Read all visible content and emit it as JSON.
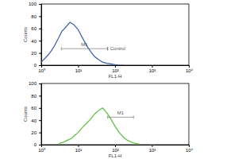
{
  "chart_data": [
    {
      "type": "line",
      "x_label": "FL1-H",
      "y_label": "Counts",
      "log": "x",
      "x": [
        1,
        1.3,
        1.7,
        2.2,
        2.8,
        3.6,
        4.6,
        6,
        7.7,
        10,
        13,
        17,
        22,
        28,
        36,
        46,
        60,
        77,
        100,
        130,
        170
      ],
      "values": [
        5,
        12,
        20,
        30,
        42,
        55,
        62,
        70,
        66,
        58,
        45,
        32,
        22,
        14,
        9,
        5,
        3,
        2,
        1,
        0,
        0
      ],
      "color": "#3a5fa8",
      "xlim": [
        1,
        10000
      ],
      "xticks": [
        {
          "value": 1,
          "label": "10⁰"
        },
        {
          "value": 10,
          "label": "10¹"
        },
        {
          "value": 100,
          "label": "10²"
        },
        {
          "value": 1000,
          "label": "10³"
        },
        {
          "value": 10000,
          "label": "10⁴"
        }
      ],
      "ylim": [
        0,
        100
      ],
      "yticks": [
        0,
        20,
        40,
        60,
        80,
        100
      ],
      "annotations": [
        {
          "text": "M1",
          "x": [
            3.5,
            63
          ],
          "y": 27
        },
        {
          "text": "Control",
          "x": [
            63,
            63
          ],
          "y": 27
        }
      ]
    },
    {
      "type": "line",
      "x_label": "FL1-H",
      "y_label": "Counts",
      "log": "x",
      "x": [
        3,
        4,
        5,
        6.5,
        8,
        10,
        13,
        17,
        22,
        28,
        36,
        46,
        60,
        77,
        100,
        130,
        170,
        220,
        280,
        360,
        460
      ],
      "values": [
        2,
        4,
        7,
        10,
        15,
        20,
        28,
        35,
        42,
        50,
        56,
        60,
        52,
        42,
        30,
        20,
        12,
        7,
        4,
        2,
        1
      ],
      "color": "#5cbf3a",
      "xlim": [
        1,
        10000
      ],
      "xticks": [
        {
          "value": 1,
          "label": "10⁰"
        },
        {
          "value": 10,
          "label": "10¹"
        },
        {
          "value": 100,
          "label": "10²"
        },
        {
          "value": 1000,
          "label": "10³"
        },
        {
          "value": 10000,
          "label": "10⁴"
        }
      ],
      "ylim": [
        0,
        100
      ],
      "yticks": [
        0,
        20,
        40,
        60,
        80,
        100
      ],
      "annotations": [
        {
          "text": "M1",
          "x": [
            63,
            316
          ],
          "y": 45
        }
      ]
    }
  ]
}
